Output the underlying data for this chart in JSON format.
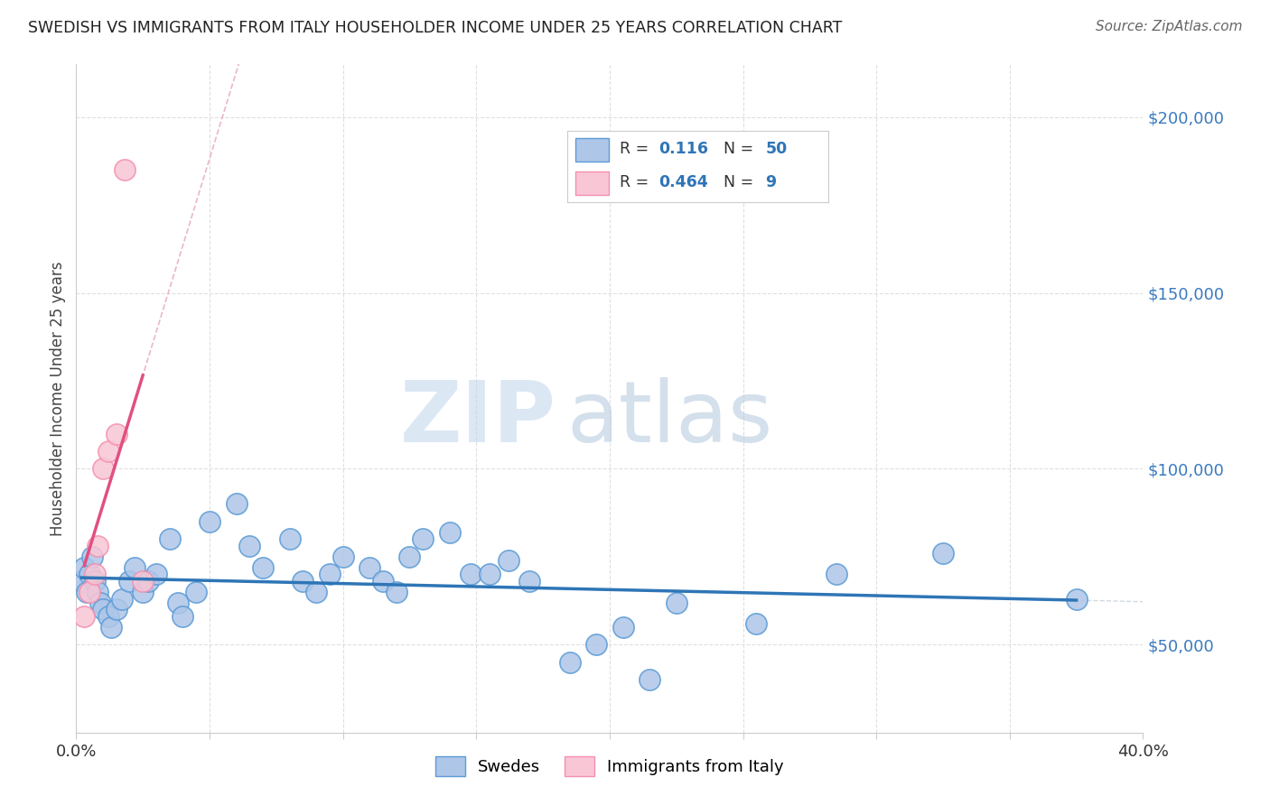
{
  "title": "SWEDISH VS IMMIGRANTS FROM ITALY HOUSEHOLDER INCOME UNDER 25 YEARS CORRELATION CHART",
  "source": "Source: ZipAtlas.com",
  "ylabel": "Householder Income Under 25 years",
  "xlim": [
    0.0,
    0.4
  ],
  "ylim": [
    25000,
    215000
  ],
  "xticks": [
    0.0,
    0.05,
    0.1,
    0.15,
    0.2,
    0.25,
    0.3,
    0.35,
    0.4
  ],
  "ytick_values": [
    50000,
    100000,
    150000,
    200000
  ],
  "ytick_labels": [
    "$50,000",
    "$100,000",
    "$150,000",
    "$200,000"
  ],
  "swedes_edge_color": "#5b9bd5",
  "swedes_face_color": "#aec6e8",
  "italy_edge_color": "#f48fb1",
  "italy_face_color": "#f9c6d5",
  "trendline_swedes_color": "#2e75b6",
  "trendline_italy_color": "#e05080",
  "trendline_italy_dashed_color": "#e8b0c0",
  "trendline_swedes_dashed_color": "#c0c8d8",
  "R_swedes": 0.116,
  "N_swedes": 50,
  "R_italy": 0.464,
  "N_italy": 9,
  "watermark_zip": "ZIP",
  "watermark_atlas": "atlas",
  "legend_label_swedes": "Swedes",
  "legend_label_italy": "Immigrants from Italy",
  "swedes_x": [
    0.002,
    0.003,
    0.004,
    0.005,
    0.006,
    0.007,
    0.008,
    0.009,
    0.01,
    0.012,
    0.013,
    0.015,
    0.017,
    0.02,
    0.022,
    0.025,
    0.027,
    0.03,
    0.035,
    0.038,
    0.04,
    0.045,
    0.05,
    0.06,
    0.065,
    0.07,
    0.08,
    0.085,
    0.09,
    0.095,
    0.1,
    0.11,
    0.115,
    0.12,
    0.125,
    0.13,
    0.14,
    0.148,
    0.155,
    0.162,
    0.17,
    0.185,
    0.195,
    0.205,
    0.215,
    0.225,
    0.255,
    0.285,
    0.325,
    0.375
  ],
  "swedes_y": [
    68000,
    72000,
    65000,
    70000,
    75000,
    68000,
    65000,
    62000,
    60000,
    58000,
    55000,
    60000,
    63000,
    68000,
    72000,
    65000,
    68000,
    70000,
    80000,
    62000,
    58000,
    65000,
    85000,
    90000,
    78000,
    72000,
    80000,
    68000,
    65000,
    70000,
    75000,
    72000,
    68000,
    65000,
    75000,
    80000,
    82000,
    70000,
    70000,
    74000,
    68000,
    45000,
    50000,
    55000,
    40000,
    62000,
    56000,
    70000,
    76000,
    63000
  ],
  "italy_x": [
    0.003,
    0.005,
    0.007,
    0.008,
    0.01,
    0.012,
    0.015,
    0.018,
    0.025
  ],
  "italy_y": [
    58000,
    65000,
    70000,
    78000,
    100000,
    105000,
    110000,
    185000,
    68000
  ]
}
